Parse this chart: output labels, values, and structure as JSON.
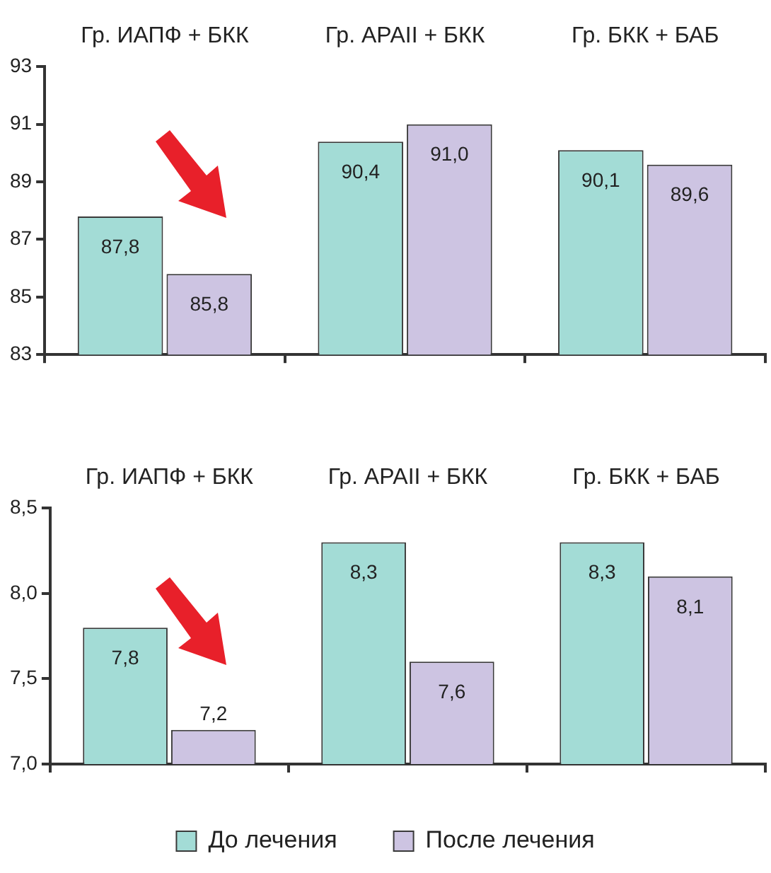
{
  "chart_data": [
    {
      "type": "bar",
      "categories": [
        "Гр. ИАПФ + БКК",
        "Гр. АРАII + БКК",
        "Гр. БКК + БАБ"
      ],
      "series": [
        {
          "color": "#a3dcd6",
          "values": [
            87.8,
            90.4,
            90.1
          ],
          "value_labels": [
            "87,8",
            "90,4",
            "90,1"
          ]
        },
        {
          "color": "#cdc4e2",
          "values": [
            85.8,
            91.0,
            89.6
          ],
          "value_labels": [
            "85,8",
            "91,0",
            "89,6"
          ]
        }
      ],
      "ylim": [
        83,
        93
      ],
      "yticks": [
        83,
        85,
        87,
        89,
        91,
        93
      ],
      "grid": false,
      "legend": false
    },
    {
      "type": "bar",
      "categories": [
        "Гр. ИАПФ + БКК",
        "Гр. АРАII + БКК",
        "Гр. БКК + БАБ"
      ],
      "series": [
        {
          "name": "До лечения",
          "color": "#a3dcd6",
          "values": [
            7.8,
            8.3,
            8.3
          ],
          "value_labels": [
            "7,8",
            "8,3",
            "8,3"
          ]
        },
        {
          "name": "После лечения",
          "color": "#cdc4e2",
          "values": [
            7.2,
            7.6,
            8.1
          ],
          "value_labels": [
            "7,2",
            "7,6",
            "8,1"
          ]
        }
      ],
      "ylim": [
        7.0,
        8.5
      ],
      "yticks": [
        {
          "value": 7.0,
          "label": "7,0"
        },
        {
          "value": 7.5,
          "label": "7,5"
        },
        {
          "value": 8.0,
          "label": "8,0"
        },
        {
          "value": 8.5,
          "label": "8,5"
        }
      ],
      "grid": false,
      "legend": "bottom"
    }
  ]
}
